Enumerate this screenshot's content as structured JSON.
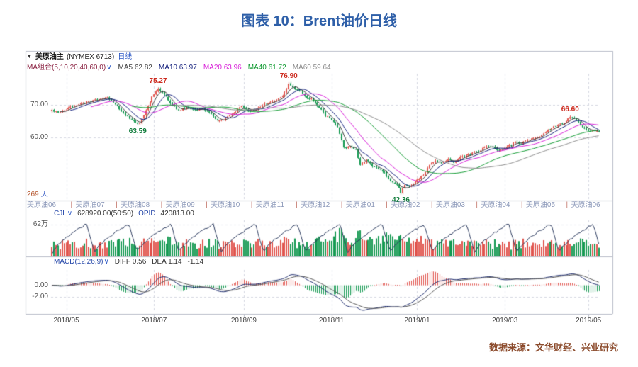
{
  "page": {
    "title": "图表 10：Brent油价日线",
    "source_note": "数据来源：文华财经、兴业研究"
  },
  "colors": {
    "title": "#2e5fa8",
    "source_note": "#8b4a2b",
    "up": "#e0544e",
    "down": "#169a52"
  },
  "chart_header": {
    "symbol": "美原油主",
    "exchange": "(NYMEX 6713)",
    "period": "日线",
    "ma_set_label": "MA组合(5,10,20,40,60,0)",
    "dropdown_glyph": "∨",
    "ma_items": [
      {
        "label": "MA5 62.82",
        "color": "#3a3a3a"
      },
      {
        "label": "MA10 63.97",
        "color": "#16227e"
      },
      {
        "label": "MA20 63.96",
        "color": "#d81fd8"
      },
      {
        "label": "MA40 61.72",
        "color": "#0f9a30"
      },
      {
        "label": "MA60 59.64",
        "color": "#8a8a8a"
      }
    ]
  },
  "volume_header": {
    "indicator": "CJL",
    "dropdown_glyph": "∨",
    "value": "628920.00(50:50)",
    "opid_label": "OPID",
    "opid_value": "420813.00"
  },
  "macd_header": {
    "indicator": "MACD(12,26,9)",
    "dropdown_glyph": "∨",
    "diff_label": "DIFF",
    "diff_value": "0.56",
    "dea_label": "DEA",
    "dea_value": "1.14",
    "macd_value": "-1.14"
  },
  "left_labels": {
    "bars_count": "269",
    "bars_unit": "天"
  },
  "chart_data": {
    "type": "candlestick",
    "title": "美原油主 (NYMEX 6713) 日线",
    "bars_shown": 269,
    "x_ticks": [
      {
        "label": "2018/05",
        "day": 7
      },
      {
        "label": "2018/07",
        "day": 50
      },
      {
        "label": "2018/09",
        "day": 94
      },
      {
        "label": "2018/11",
        "day": 137
      },
      {
        "label": "2019/01",
        "day": 179
      },
      {
        "label": "2019/03",
        "day": 222
      },
      {
        "label": "2019/05",
        "day": 263
      }
    ],
    "contracts": [
      "美原油06",
      "美原油07",
      "美原油08",
      "美原油09",
      "美原油10",
      "美原油11",
      "美原油12",
      "美原油01",
      "美原油02",
      "美原油03",
      "美原油04",
      "美原油05",
      "美原油06"
    ],
    "main_panel": {
      "ylim": [
        40.5,
        79.5
      ],
      "y_ticks": [
        {
          "label": "70.00",
          "value": 70
        },
        {
          "label": "60.00",
          "value": 60
        }
      ],
      "up_color": "#e0544e",
      "down_color": "#169a52",
      "ma_windows": [
        5,
        10,
        20,
        40,
        60
      ],
      "ma_colors": [
        "#3a3a3a",
        "#16227e",
        "#d81fd8",
        "#0f9a30",
        "#8a8a8a"
      ],
      "key_points": [
        {
          "label": "75.27",
          "day": 52,
          "price": 75.27,
          "side": "above",
          "color": "#cc2a1e"
        },
        {
          "label": "63.59",
          "day": 42,
          "price": 63.59,
          "side": "below",
          "color": "#0c7a38"
        },
        {
          "label": "76.90",
          "day": 116,
          "price": 76.9,
          "side": "above",
          "color": "#cc2a1e"
        },
        {
          "label": "42.36",
          "day": 171,
          "price": 42.36,
          "side": "below",
          "color": "#0c7a38"
        },
        {
          "label": "66.60",
          "day": 254,
          "price": 66.6,
          "side": "above",
          "color": "#cc2a1e"
        }
      ],
      "price_anchors": [
        [
          0,
          68.2
        ],
        [
          4,
          67.6
        ],
        [
          8,
          68.9
        ],
        [
          14,
          70.4
        ],
        [
          20,
          71.2
        ],
        [
          27,
          72.4
        ],
        [
          31,
          70.1
        ],
        [
          35,
          67.3
        ],
        [
          40,
          64.7
        ],
        [
          43,
          64.3
        ],
        [
          46,
          68.1
        ],
        [
          49,
          72.3
        ],
        [
          52,
          74.7
        ],
        [
          55,
          73.2
        ],
        [
          58,
          70.4
        ],
        [
          62,
          68.0
        ],
        [
          66,
          69.2
        ],
        [
          70,
          68.3
        ],
        [
          74,
          68.9
        ],
        [
          78,
          66.9
        ],
        [
          81,
          64.9
        ],
        [
          85,
          65.8
        ],
        [
          89,
          67.4
        ],
        [
          93,
          69.6
        ],
        [
          96,
          68.1
        ],
        [
          100,
          68.6
        ],
        [
          104,
          70.1
        ],
        [
          108,
          71.1
        ],
        [
          112,
          72.1
        ],
        [
          115,
          74.7
        ],
        [
          117,
          75.9
        ],
        [
          119,
          74.8
        ],
        [
          122,
          74.1
        ],
        [
          125,
          72.1
        ],
        [
          128,
          71.4
        ],
        [
          131,
          69.1
        ],
        [
          134,
          66.7
        ],
        [
          137,
          65.2
        ],
        [
          140,
          63.3
        ],
        [
          143,
          56.6
        ],
        [
          146,
          57.1
        ],
        [
          149,
          56.3
        ],
        [
          151,
          51.3
        ],
        [
          154,
          53.1
        ],
        [
          157,
          51.1
        ],
        [
          160,
          50.2
        ],
        [
          163,
          49.1
        ],
        [
          166,
          46.4
        ],
        [
          169,
          45.6
        ],
        [
          171,
          43.0
        ],
        [
          173,
          45.5
        ],
        [
          176,
          44.9
        ],
        [
          179,
          46.8
        ],
        [
          182,
          48.3
        ],
        [
          185,
          51.7
        ],
        [
          188,
          52.6
        ],
        [
          191,
          51.9
        ],
        [
          194,
          53.3
        ],
        [
          197,
          52.1
        ],
        [
          200,
          53.7
        ],
        [
          203,
          54.2
        ],
        [
          206,
          55.1
        ],
        [
          209,
          55.6
        ],
        [
          212,
          56.9
        ],
        [
          215,
          57.1
        ],
        [
          218,
          55.9
        ],
        [
          221,
          56.4
        ],
        [
          224,
          57.4
        ],
        [
          227,
          58.5
        ],
        [
          230,
          58.1
        ],
        [
          233,
          59.2
        ],
        [
          236,
          59.8
        ],
        [
          239,
          60.4
        ],
        [
          242,
          61.7
        ],
        [
          245,
          62.8
        ],
        [
          248,
          63.8
        ],
        [
          251,
          64.5
        ],
        [
          253,
          65.7
        ],
        [
          255,
          66.1
        ],
        [
          257,
          65.3
        ],
        [
          259,
          63.9
        ],
        [
          261,
          62.5
        ],
        [
          263,
          61.9
        ],
        [
          265,
          62.2
        ],
        [
          268,
          61.8
        ]
      ]
    },
    "volume_panel": {
      "max": 70,
      "unit": "万",
      "y_ticks": [
        {
          "label": "62万",
          "value": 62
        }
      ],
      "last_volume": "628920.00",
      "last_open_interest": "420813.00"
    },
    "macd_panel": {
      "params": [
        12,
        26,
        9
      ],
      "y_ticks": [
        {
          "label": "0.00",
          "value": 0
        },
        {
          "label": "-2.00",
          "value": -2
        }
      ],
      "diff": 0.56,
      "dea": 1.14,
      "macd": -1.14
    }
  }
}
